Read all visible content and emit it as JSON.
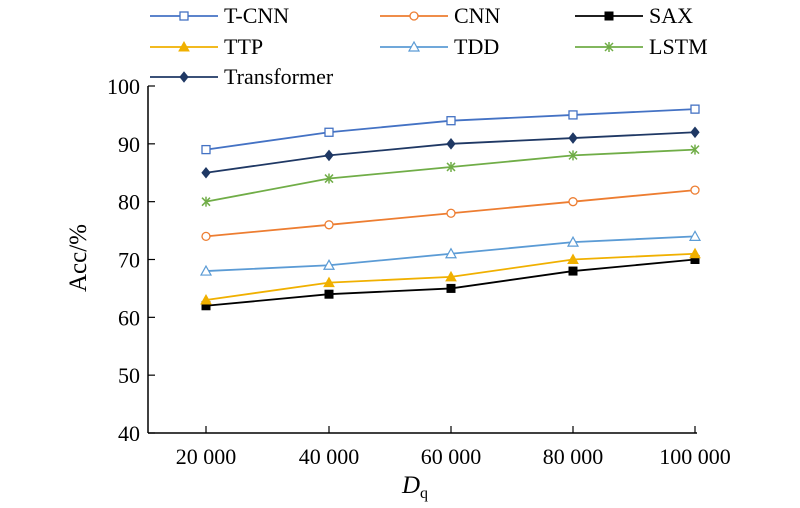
{
  "chart_data": {
    "type": "line",
    "title": "",
    "xlabel": "D",
    "xlabel_subscript": "q",
    "ylabel": "Acc/%",
    "categories": [
      "20 000",
      "40 000",
      "60 000",
      "80 000",
      "100 000"
    ],
    "ylim": [
      40,
      100
    ],
    "yticks": [
      40,
      50,
      60,
      70,
      80,
      90,
      100
    ],
    "grid": false,
    "legend_position": "top",
    "series": [
      {
        "name": "T-CNN",
        "color": "#4472C4",
        "marker": "square-open",
        "values": [
          89,
          92,
          94,
          95,
          96
        ]
      },
      {
        "name": "CNN",
        "color": "#ED7D31",
        "marker": "circle-open",
        "values": [
          74,
          76,
          78,
          80,
          82
        ]
      },
      {
        "name": "SAX",
        "color": "#000000",
        "marker": "square-filled",
        "values": [
          62,
          64,
          65,
          68,
          70
        ]
      },
      {
        "name": "TTP",
        "color": "#F0B000",
        "marker": "triangle-filled",
        "values": [
          63,
          66,
          67,
          70,
          71
        ]
      },
      {
        "name": "TDD",
        "color": "#5B9BD5",
        "marker": "triangle-open",
        "values": [
          68,
          69,
          71,
          73,
          74
        ]
      },
      {
        "name": "LSTM",
        "color": "#70AD47",
        "marker": "asterisk",
        "values": [
          80,
          84,
          86,
          88,
          89
        ]
      },
      {
        "name": "Transformer",
        "color": "#1F3864",
        "marker": "diamond-filled",
        "values": [
          85,
          88,
          90,
          91,
          92
        ]
      }
    ]
  }
}
